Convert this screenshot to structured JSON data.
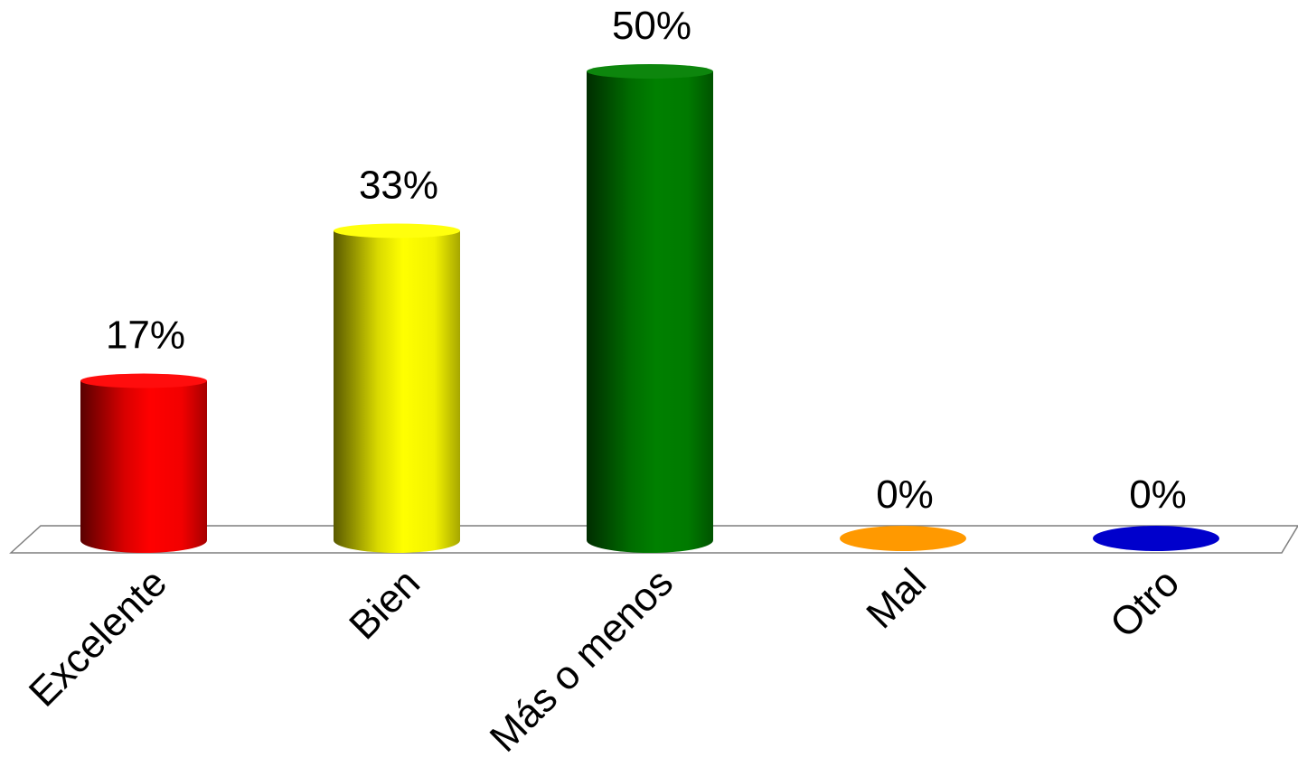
{
  "chart_data": {
    "type": "bar",
    "style": "3d-cylinder",
    "title": "",
    "xlabel": "",
    "ylabel": "",
    "ylim": [
      0,
      50
    ],
    "grid": false,
    "legend": "none",
    "categories": [
      "Excelente",
      "Bien",
      "Más o menos",
      "Mal",
      "Otro"
    ],
    "values": [
      17,
      33,
      50,
      0,
      0
    ],
    "value_labels": [
      "17%",
      "33%",
      "50%",
      "0%",
      "0%"
    ],
    "colors": [
      "#ff0000",
      "#ffff00",
      "#008000",
      "#ff9900",
      "#0000cc"
    ]
  }
}
